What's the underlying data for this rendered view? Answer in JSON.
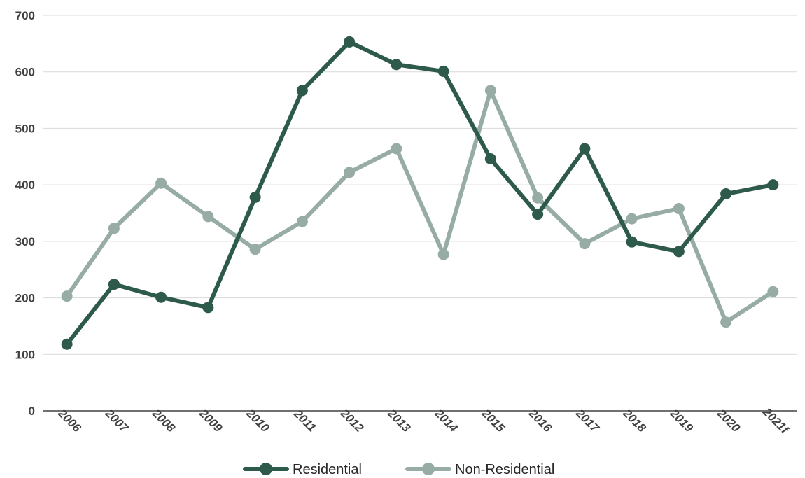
{
  "chart_data": {
    "type": "line",
    "categories": [
      "2006",
      "2007",
      "2008",
      "2009",
      "2010",
      "2011",
      "2012",
      "2013",
      "2014",
      "2015",
      "2016",
      "2017",
      "2018",
      "2019",
      "2020",
      "2021f"
    ],
    "series": [
      {
        "name": "Residential",
        "color": "#2e5a4c",
        "values": [
          118,
          224,
          201,
          183,
          378,
          567,
          653,
          613,
          601,
          446,
          348,
          464,
          299,
          282,
          384,
          400
        ]
      },
      {
        "name": "Non-Residential",
        "color": "#96aca4",
        "values": [
          203,
          323,
          403,
          344,
          286,
          335,
          422,
          464,
          277,
          567,
          377,
          296,
          340,
          358,
          157,
          211
        ]
      }
    ],
    "yticks": [
      "0",
      "100",
      "200",
      "300",
      "400",
      "500",
      "600",
      "700"
    ],
    "ylim": [
      0,
      700
    ],
    "grid": true,
    "legend_position": "bottom-center"
  }
}
